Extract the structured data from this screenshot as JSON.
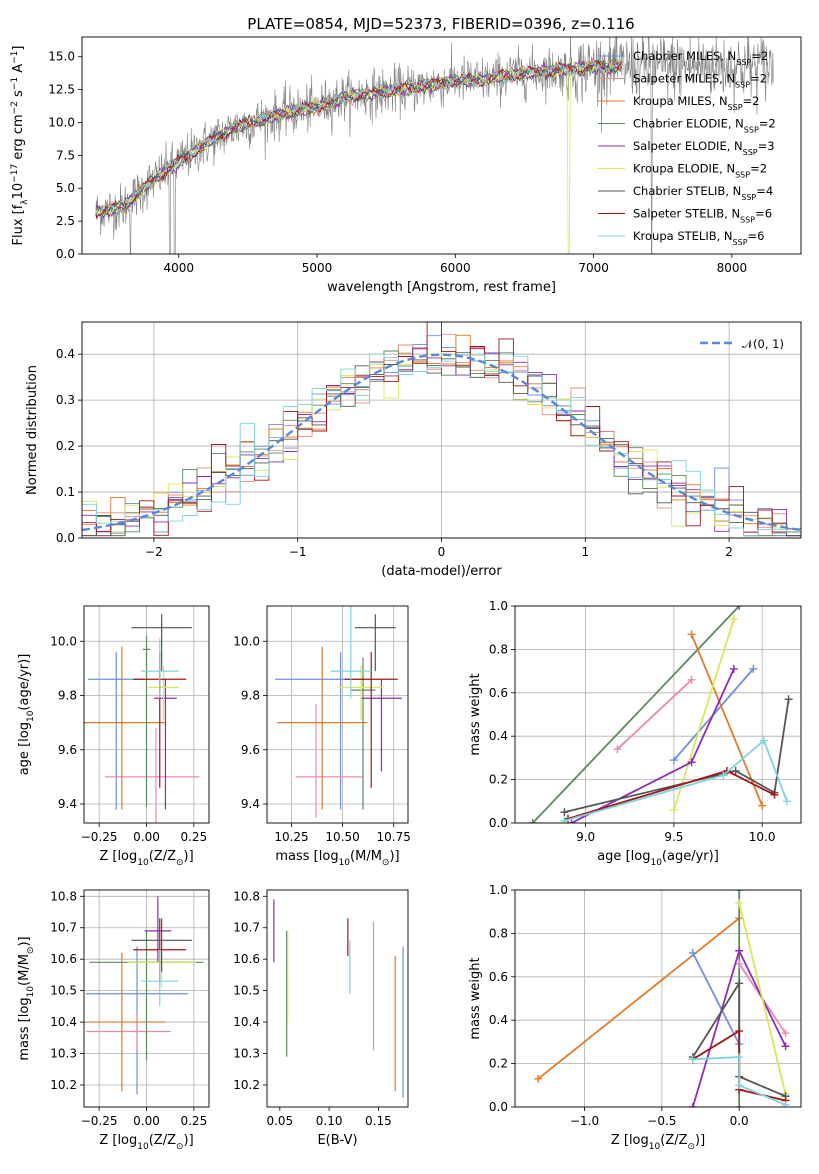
{
  "figure": {
    "title": "PLATE=0854, MJD=52373, FIBERID=0396, z=0.116"
  },
  "colors": {
    "models": [
      "#6f8fe0",
      "#f08a80",
      "#e07b2a",
      "#5a8a5e",
      "#8b2fb5",
      "#d8e85a",
      "#555555",
      "#a01818",
      "#7fd3de"
    ],
    "cross_models": [
      "#e07b2a",
      "#6f8fe0",
      "#5a8a5e",
      "#e88ab8",
      "#8b2fb5",
      "#d8e85a",
      "#555555",
      "#a01818",
      "#7fd3de"
    ]
  },
  "chart_data": [
    {
      "id": "spectrum",
      "type": "line",
      "xlabel": "wavelength [Angstrom, rest frame]",
      "ylabel": "Flux [f_λ10^-17 erg cm^-2 s^-1 A^-1]",
      "xlim": [
        3300,
        8500
      ],
      "ylim": [
        0,
        16.5
      ],
      "xticks": [
        4000,
        5000,
        6000,
        7000,
        8000
      ],
      "yticks": [
        0.0,
        2.5,
        5.0,
        7.5,
        10.0,
        12.5,
        15.0
      ],
      "legend_loc": "upper right",
      "legend": [
        {
          "label": "Chabrier MILES, N",
          "sub": "SSP",
          "suffix": "=2"
        },
        {
          "label": "Salpeter MILES, N",
          "sub": "SSP",
          "suffix": "=2"
        },
        {
          "label": "Kroupa MILES, N",
          "sub": "SSP",
          "suffix": "=2"
        },
        {
          "label": "Chabrier ELODIE, N",
          "sub": "SSP",
          "suffix": "=2"
        },
        {
          "label": "Salpeter ELODIE, N",
          "sub": "SSP",
          "suffix": "=3"
        },
        {
          "label": "Kroupa ELODIE, N",
          "sub": "SSP",
          "suffix": "=2"
        },
        {
          "label": "Chabrier STELIB, N",
          "sub": "SSP",
          "suffix": "=4"
        },
        {
          "label": "Salpeter STELIB, N",
          "sub": "SSP",
          "suffix": "=6"
        },
        {
          "label": "Kroupa STELIB, N",
          "sub": "SSP",
          "suffix": "=6"
        }
      ],
      "data_color": "#808080",
      "continuum": {
        "x": [
          3400,
          3600,
          3800,
          4000,
          4200,
          4400,
          4600,
          4800,
          5000,
          5200,
          5400,
          5600,
          5800,
          6000,
          6200,
          6400,
          6600,
          6800,
          7000,
          7200
        ],
        "y": [
          3.2,
          3.6,
          5.5,
          7.0,
          8.4,
          9.6,
          10.2,
          10.8,
          11.2,
          11.9,
          12.2,
          12.5,
          12.8,
          13.2,
          13.2,
          13.6,
          13.9,
          14.0,
          14.2,
          14.3
        ]
      },
      "data_range": [
        3400,
        8300
      ]
    },
    {
      "id": "residuals",
      "type": "histogram",
      "xlabel": "(data-model)/error",
      "ylabel": "Normed distribution",
      "xlim": [
        -2.5,
        2.5
      ],
      "ylim": [
        0,
        0.47
      ],
      "xticks": [
        -2,
        -1,
        0,
        1,
        2
      ],
      "yticks": [
        0.0,
        0.1,
        0.2,
        0.3,
        0.4
      ],
      "grid": true,
      "legend_loc": "upper right",
      "legend": [
        {
          "label": "𝒩(0, 1)"
        }
      ],
      "bin_width": 0.1
    },
    {
      "id": "z-age",
      "type": "errorbar",
      "xlabel": "Z [log10(Z/Z⊙)]",
      "ylabel": "age  [log10(age/yr)]",
      "xlim": [
        -0.33,
        0.33
      ],
      "ylim": [
        9.33,
        10.13
      ],
      "xticks": [
        -0.25,
        0.0,
        0.25
      ],
      "xtick_labels": [
        "−0.25",
        "0.00",
        "0.25"
      ],
      "yticks": [
        9.4,
        9.6,
        9.8,
        10.0
      ],
      "grid": true,
      "points": [
        {
          "x": -0.16,
          "y": 9.86,
          "xerr": [
            0.15,
            0.15
          ],
          "yerr": [
            0.48,
            0.1
          ],
          "color": "#6f8fe0"
        },
        {
          "x": 0.05,
          "y": 9.5,
          "xerr": [
            0.27,
            0.23
          ],
          "yerr": [
            0.18,
            0.18
          ],
          "color": "#e88ab8"
        },
        {
          "x": -0.13,
          "y": 9.7,
          "xerr": [
            0.2,
            0.23
          ],
          "yerr": [
            0.32,
            0.28
          ],
          "color": "#e07b2a"
        },
        {
          "x": 0.0,
          "y": 9.97,
          "xerr": [
            0.02,
            0.02
          ],
          "yerr": [
            0.58,
            0.05
          ],
          "color": "#5a8a5e"
        },
        {
          "x": 0.1,
          "y": 9.79,
          "xerr": [
            0.06,
            0.06
          ],
          "yerr": [
            0.41,
            0.07
          ],
          "color": "#8b2fb5"
        },
        {
          "x": 0.09,
          "y": 9.83,
          "xerr": [
            0.08,
            0.08
          ],
          "yerr": [
            0.12,
            0.08
          ],
          "color": "#d8e85a"
        },
        {
          "x": 0.08,
          "y": 10.05,
          "xerr": [
            0.16,
            0.16
          ],
          "yerr": [
            0.16,
            0.05
          ],
          "color": "#555555"
        },
        {
          "x": 0.07,
          "y": 9.86,
          "xerr": [
            0.14,
            0.14
          ],
          "yerr": [
            0.4,
            0.1
          ],
          "color": "#a01818"
        },
        {
          "x": 0.07,
          "y": 9.89,
          "xerr": [
            0.1,
            0.1
          ],
          "yerr": [
            0.1,
            0.12
          ],
          "color": "#7fd3de"
        }
      ]
    },
    {
      "id": "mass-age",
      "type": "errorbar",
      "xlabel": "mass [log10(M/M⊙)]",
      "xlim": [
        10.13,
        10.82
      ],
      "ylim": [
        9.33,
        10.13
      ],
      "xticks": [
        10.25,
        10.5,
        10.75
      ],
      "xtick_labels": [
        "10.25",
        "10.50",
        "10.75"
      ],
      "yticks": [
        9.4,
        9.6,
        9.8,
        10.0
      ],
      "grid": true,
      "points": [
        {
          "x": 10.49,
          "y": 9.86,
          "xerr": [
            0.32,
            0.12
          ],
          "yerr": [
            0.48,
            0.1
          ],
          "color": "#6f8fe0"
        },
        {
          "x": 10.37,
          "y": 9.5,
          "xerr": [
            0.1,
            0.23
          ],
          "yerr": [
            0.15,
            0.27
          ],
          "color": "#e88ab8"
        },
        {
          "x": 10.4,
          "y": 9.7,
          "xerr": [
            0.22,
            0.22
          ],
          "yerr": [
            0.32,
            0.28
          ],
          "color": "#e07b2a"
        },
        {
          "x": 10.6,
          "y": 9.82,
          "xerr": [
            0.06,
            0.06
          ],
          "yerr": [
            0.44,
            0.12
          ],
          "color": "#5a8a5e"
        },
        {
          "x": 10.69,
          "y": 9.79,
          "xerr": [
            0.1,
            0.1
          ],
          "yerr": [
            0.27,
            0.07
          ],
          "color": "#8b2fb5"
        },
        {
          "x": 10.59,
          "y": 9.83,
          "xerr": [
            0.11,
            0.11
          ],
          "yerr": [
            0.12,
            0.08
          ],
          "color": "#d8e85a"
        },
        {
          "x": 10.66,
          "y": 10.05,
          "xerr": [
            0.1,
            0.1
          ],
          "yerr": [
            0.16,
            0.05
          ],
          "color": "#555555"
        },
        {
          "x": 10.64,
          "y": 9.86,
          "xerr": [
            0.13,
            0.13
          ],
          "yerr": [
            0.4,
            0.1
          ],
          "color": "#a01818"
        },
        {
          "x": 10.54,
          "y": 9.89,
          "xerr": [
            0.1,
            0.1
          ],
          "yerr": [
            0.1,
            0.25
          ],
          "color": "#7fd3de"
        }
      ]
    },
    {
      "id": "age-weight",
      "type": "line",
      "xlabel": "age  [log10(age/yr)]",
      "ylabel": "mass weight",
      "xlim": [
        8.6,
        10.22
      ],
      "ylim": [
        0,
        1
      ],
      "xticks": [
        9.0,
        9.5,
        10.0
      ],
      "yticks": [
        0.0,
        0.2,
        0.4,
        0.6,
        0.8,
        1.0
      ],
      "grid": true,
      "series": [
        {
          "color": "#5a8a5e",
          "x": [
            8.7,
            9.87
          ],
          "y": [
            0.0,
            1.0
          ]
        },
        {
          "color": "#e88ab8",
          "x": [
            9.18,
            9.6
          ],
          "y": [
            0.34,
            0.66
          ]
        },
        {
          "color": "#6f8fe0",
          "x": [
            9.5,
            9.95
          ],
          "y": [
            0.29,
            0.71
          ]
        },
        {
          "color": "#e07b2a",
          "x": [
            9.6,
            10.0
          ],
          "y": [
            0.87,
            0.08
          ]
        },
        {
          "color": "#d8e85a",
          "x": [
            9.5,
            9.84
          ],
          "y": [
            0.06,
            0.94
          ]
        },
        {
          "color": "#8b2fb5",
          "x": [
            8.92,
            9.6,
            9.84
          ],
          "y": [
            0.0,
            0.28,
            0.71
          ]
        },
        {
          "color": "#555555",
          "x": [
            8.88,
            9.85,
            10.07,
            10.15
          ],
          "y": [
            0.05,
            0.24,
            0.14,
            0.57
          ]
        },
        {
          "color": "#a01818",
          "x": [
            8.9,
            9.8,
            10.07
          ],
          "y": [
            0.02,
            0.24,
            0.13
          ]
        },
        {
          "color": "#7fd3de",
          "x": [
            8.88,
            9.78,
            10.01,
            10.14
          ],
          "y": [
            0.01,
            0.22,
            0.38,
            0.1
          ]
        }
      ]
    },
    {
      "id": "z-mass",
      "type": "errorbar",
      "xlabel": "Z [log10(Z/Z⊙)]",
      "ylabel": "mass [log10(M/M⊙)]",
      "xlim": [
        -0.33,
        0.33
      ],
      "ylim": [
        10.13,
        10.82
      ],
      "xticks": [
        -0.25,
        0.0,
        0.25
      ],
      "xtick_labels": [
        "−0.25",
        "0.00",
        "0.25"
      ],
      "yticks": [
        10.2,
        10.3,
        10.4,
        10.5,
        10.6,
        10.7,
        10.8
      ],
      "grid": true,
      "points": [
        {
          "x": -0.05,
          "y": 10.49,
          "xerr": [
            0.27,
            0.27
          ],
          "yerr": [
            0.32,
            0.15
          ],
          "color": "#6f8fe0"
        },
        {
          "x": -0.05,
          "y": 10.37,
          "xerr": [
            0.27,
            0.18
          ],
          "yerr": [
            0.06,
            0.06
          ],
          "color": "#e88ab8"
        },
        {
          "x": -0.13,
          "y": 10.4,
          "xerr": [
            0.2,
            0.23
          ],
          "yerr": [
            0.22,
            0.22
          ],
          "color": "#e07b2a"
        },
        {
          "x": 0.0,
          "y": 10.59,
          "xerr": [
            0.3,
            0.3
          ],
          "yerr": [
            0.31,
            0.1
          ],
          "color": "#5a8a5e"
        },
        {
          "x": 0.06,
          "y": 10.69,
          "xerr": [
            0.07,
            0.07
          ],
          "yerr": [
            0.1,
            0.11
          ],
          "color": "#8b2fb5"
        },
        {
          "x": 0.08,
          "y": 10.59,
          "xerr": [
            0.18,
            0.18
          ],
          "yerr": [
            0.08,
            0.06
          ],
          "color": "#d8e85a"
        },
        {
          "x": 0.08,
          "y": 10.66,
          "xerr": [
            0.16,
            0.16
          ],
          "yerr": [
            0.1,
            0.07
          ],
          "color": "#555555"
        },
        {
          "x": 0.07,
          "y": 10.63,
          "xerr": [
            0.14,
            0.14
          ],
          "yerr": [
            0.1,
            0.1
          ],
          "color": "#a01818"
        },
        {
          "x": 0.07,
          "y": 10.53,
          "xerr": [
            0.1,
            0.1
          ],
          "yerr": [
            0.08,
            0.1
          ],
          "color": "#7fd3de"
        }
      ]
    },
    {
      "id": "ebv-mass",
      "type": "errorbar",
      "xlabel": "E(B-V)",
      "xlim": [
        0.037,
        0.18
      ],
      "ylim": [
        10.13,
        10.82
      ],
      "xticks": [
        0.05,
        0.1,
        0.15
      ],
      "xtick_labels": [
        "0.05",
        "0.10",
        "0.15"
      ],
      "yticks": [
        10.2,
        10.3,
        10.4,
        10.5,
        10.6,
        10.7,
        10.8
      ],
      "grid": false,
      "points": [
        {
          "x": 0.044,
          "y": 10.69,
          "yerr": [
            0.1,
            0.1
          ],
          "color": "#8b2fb5"
        },
        {
          "x": 0.057,
          "y": 10.49,
          "yerr": [
            0.2,
            0.2
          ],
          "color": "#5a8a5e"
        },
        {
          "x": 0.058,
          "y": 10.52,
          "yerr": [
            0.12,
            0.17
          ],
          "color": "#d8e85a"
        },
        {
          "x": 0.119,
          "y": 10.67,
          "yerr": [
            0.06,
            0.06
          ],
          "color": "#a01818"
        },
        {
          "x": 0.121,
          "y": 10.6,
          "yerr": [
            0.11,
            0.06
          ],
          "color": "#7fd3de"
        },
        {
          "x": 0.145,
          "y": 10.52,
          "yerr": [
            0.21,
            0.2
          ],
          "color": "#e88ab8"
        },
        {
          "x": 0.167,
          "y": 10.4,
          "yerr": [
            0.22,
            0.21
          ],
          "color": "#e07b2a"
        },
        {
          "x": 0.175,
          "y": 10.4,
          "yerr": [
            0.24,
            0.24
          ],
          "color": "#6f8fe0"
        }
      ]
    },
    {
      "id": "z-weight",
      "type": "line",
      "xlabel": "Z [log10(Z/Z⊙)]",
      "ylabel": "mass weight",
      "xlim": [
        -1.45,
        0.4
      ],
      "ylim": [
        0,
        1
      ],
      "xticks": [
        -1.0,
        -0.5,
        0.0
      ],
      "xtick_labels": [
        "−1.0",
        "−0.5",
        "0.0"
      ],
      "yticks": [
        0.0,
        0.2,
        0.4,
        0.6,
        0.8,
        1.0
      ],
      "grid": true,
      "series": [
        {
          "color": "#e07b2a",
          "x": [
            -1.3,
            0.0
          ],
          "y": [
            0.13,
            0.87
          ]
        },
        {
          "color": "#6f8fe0",
          "x": [
            -0.3,
            0.0
          ],
          "y": [
            0.71,
            0.29
          ]
        },
        {
          "color": "#5a8a5e",
          "x": [
            0.0,
            0.0
          ],
          "y": [
            0.0,
            1.0
          ]
        },
        {
          "color": "#e88ab8",
          "x": [
            0.0,
            0.3
          ],
          "y": [
            0.66,
            0.34
          ]
        },
        {
          "color": "#8b2fb5",
          "x": [
            -0.3,
            0.0,
            0.3
          ],
          "y": [
            0.0,
            0.72,
            0.28
          ]
        },
        {
          "color": "#d8e85a",
          "x": [
            0.0,
            0.3
          ],
          "y": [
            0.94,
            0.06
          ]
        },
        {
          "color": "#555555",
          "x": [
            -0.3,
            0.0,
            0.0,
            0.3
          ],
          "y": [
            0.23,
            0.57,
            0.14,
            0.05
          ]
        },
        {
          "color": "#a01818",
          "x": [
            -0.3,
            0.0,
            0.0,
            0.3
          ],
          "y": [
            0.22,
            0.35,
            0.08,
            0.03
          ]
        },
        {
          "color": "#7fd3de",
          "x": [
            -0.3,
            0.0,
            0.0,
            0.3
          ],
          "y": [
            0.22,
            0.23,
            0.1,
            0.01
          ]
        }
      ]
    }
  ]
}
